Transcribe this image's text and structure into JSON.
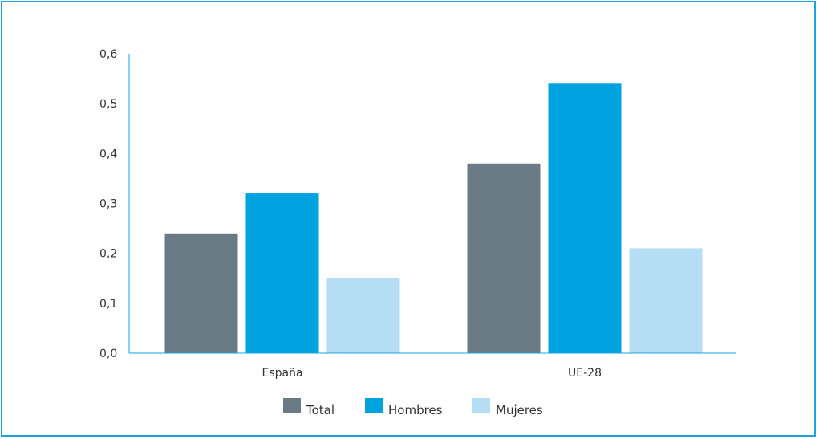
{
  "chart_data": {
    "type": "bar",
    "categories": [
      "España",
      "UE-28"
    ],
    "series": [
      {
        "name": "Total",
        "values": [
          0.24,
          0.38
        ],
        "color": "#6b7b86"
      },
      {
        "name": "Hombres",
        "values": [
          0.32,
          0.54
        ],
        "color": "#00a3e0"
      },
      {
        "name": "Mujeres",
        "values": [
          0.15,
          0.21
        ],
        "color": "#b5ddf3"
      }
    ],
    "ylim": [
      0,
      0.6
    ],
    "yticks": [
      "0,0",
      "0,1",
      "0,2",
      "0,3",
      "0,4",
      "0,5",
      "0,6"
    ],
    "title": "",
    "xlabel": "",
    "ylabel": "",
    "grid": false,
    "legend": "bottom-center"
  }
}
